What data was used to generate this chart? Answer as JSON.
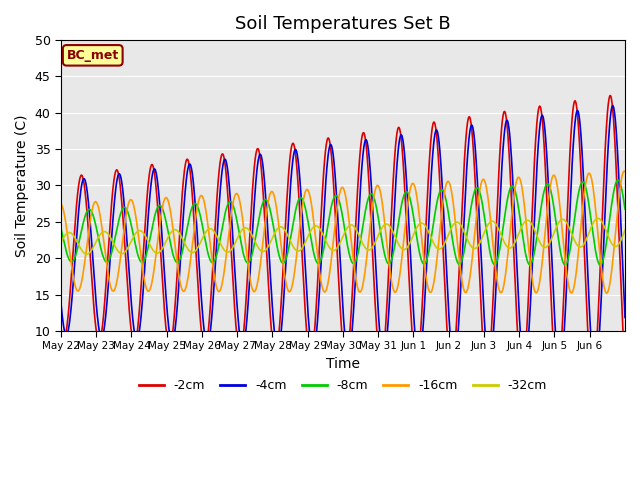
{
  "title": "Soil Temperatures Set B",
  "xlabel": "Time",
  "ylabel": "Soil Temperature (C)",
  "ylim": [
    10,
    50
  ],
  "annotation": "BC_met",
  "bg_color": "#e8e8e8",
  "x_tick_labels": [
    "May 22",
    "May 23",
    "May 24",
    "May 25",
    "May 26",
    "May 27",
    "May 28",
    "May 29",
    "May 30",
    "May 31",
    "Jun 1",
    "Jun 2",
    "Jun 3",
    "Jun 4",
    "Jun 5",
    "Jun 6"
  ],
  "n_days": 16,
  "labels": [
    "-2cm",
    "-4cm",
    "-8cm",
    "-16cm",
    "-32cm"
  ],
  "colors": [
    "#dd0000",
    "#0000dd",
    "#00cc00",
    "#ff9900",
    "#cccc00"
  ],
  "mean_base": [
    20.0,
    20.0,
    23.0,
    21.5,
    22.0
  ],
  "mean_slope": [
    0.18,
    0.17,
    0.12,
    0.13,
    0.1
  ],
  "amp_base": [
    11.0,
    10.5,
    3.5,
    6.0,
    1.5
  ],
  "amp_slope": [
    0.55,
    0.5,
    0.15,
    0.15,
    0.03
  ],
  "lags": [
    0.0,
    0.07,
    0.22,
    0.4,
    0.65
  ],
  "yticks": [
    10,
    15,
    20,
    25,
    30,
    35,
    40,
    45,
    50
  ]
}
